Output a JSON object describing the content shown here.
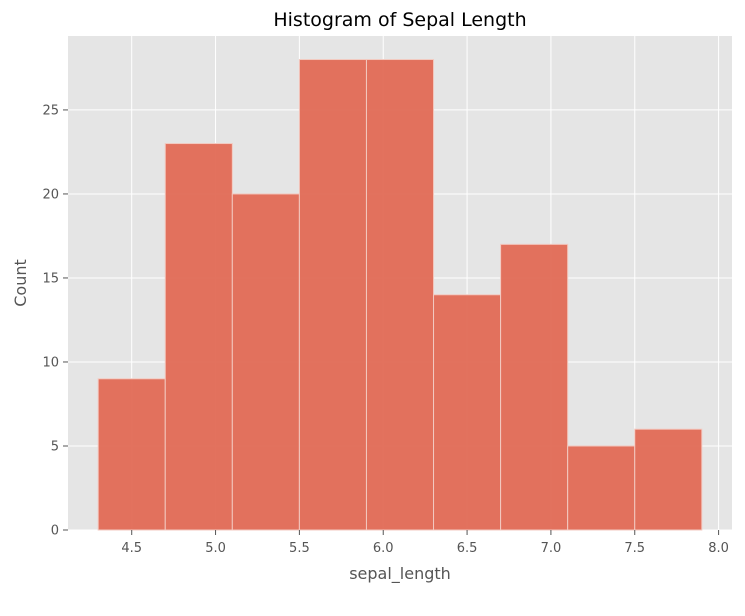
{
  "chart_data": {
    "type": "bar",
    "title": "Histogram of Sepal Length",
    "xlabel": "sepal_length",
    "ylabel": "Count",
    "bins": [
      {
        "start": 4.3,
        "end": 4.7,
        "value": 9
      },
      {
        "start": 4.7,
        "end": 5.1,
        "value": 23
      },
      {
        "start": 5.1,
        "end": 5.5,
        "value": 20
      },
      {
        "start": 5.5,
        "end": 5.9,
        "value": 28
      },
      {
        "start": 5.9,
        "end": 6.3,
        "value": 28
      },
      {
        "start": 6.3,
        "end": 6.7,
        "value": 14
      },
      {
        "start": 6.7,
        "end": 7.1,
        "value": 17
      },
      {
        "start": 7.1,
        "end": 7.5,
        "value": 5
      },
      {
        "start": 7.5,
        "end": 7.9,
        "value": 6
      }
    ],
    "xlim": [
      4.12,
      8.08
    ],
    "ylim": [
      0,
      29.4
    ],
    "xticks": [
      "4.5",
      "5.0",
      "5.5",
      "6.0",
      "6.5",
      "7.0",
      "7.5",
      "8.0"
    ],
    "yticks": [
      "0",
      "5",
      "10",
      "15",
      "20",
      "25"
    ],
    "grid": true,
    "legend": "none",
    "colors": {
      "bar": "#E26A55",
      "bar_edge": "#F3C9C0",
      "plot_background": "#E5E5E5",
      "grid": "#FFFFFF",
      "tick_text": "#555555",
      "title_text": "#000000"
    }
  }
}
